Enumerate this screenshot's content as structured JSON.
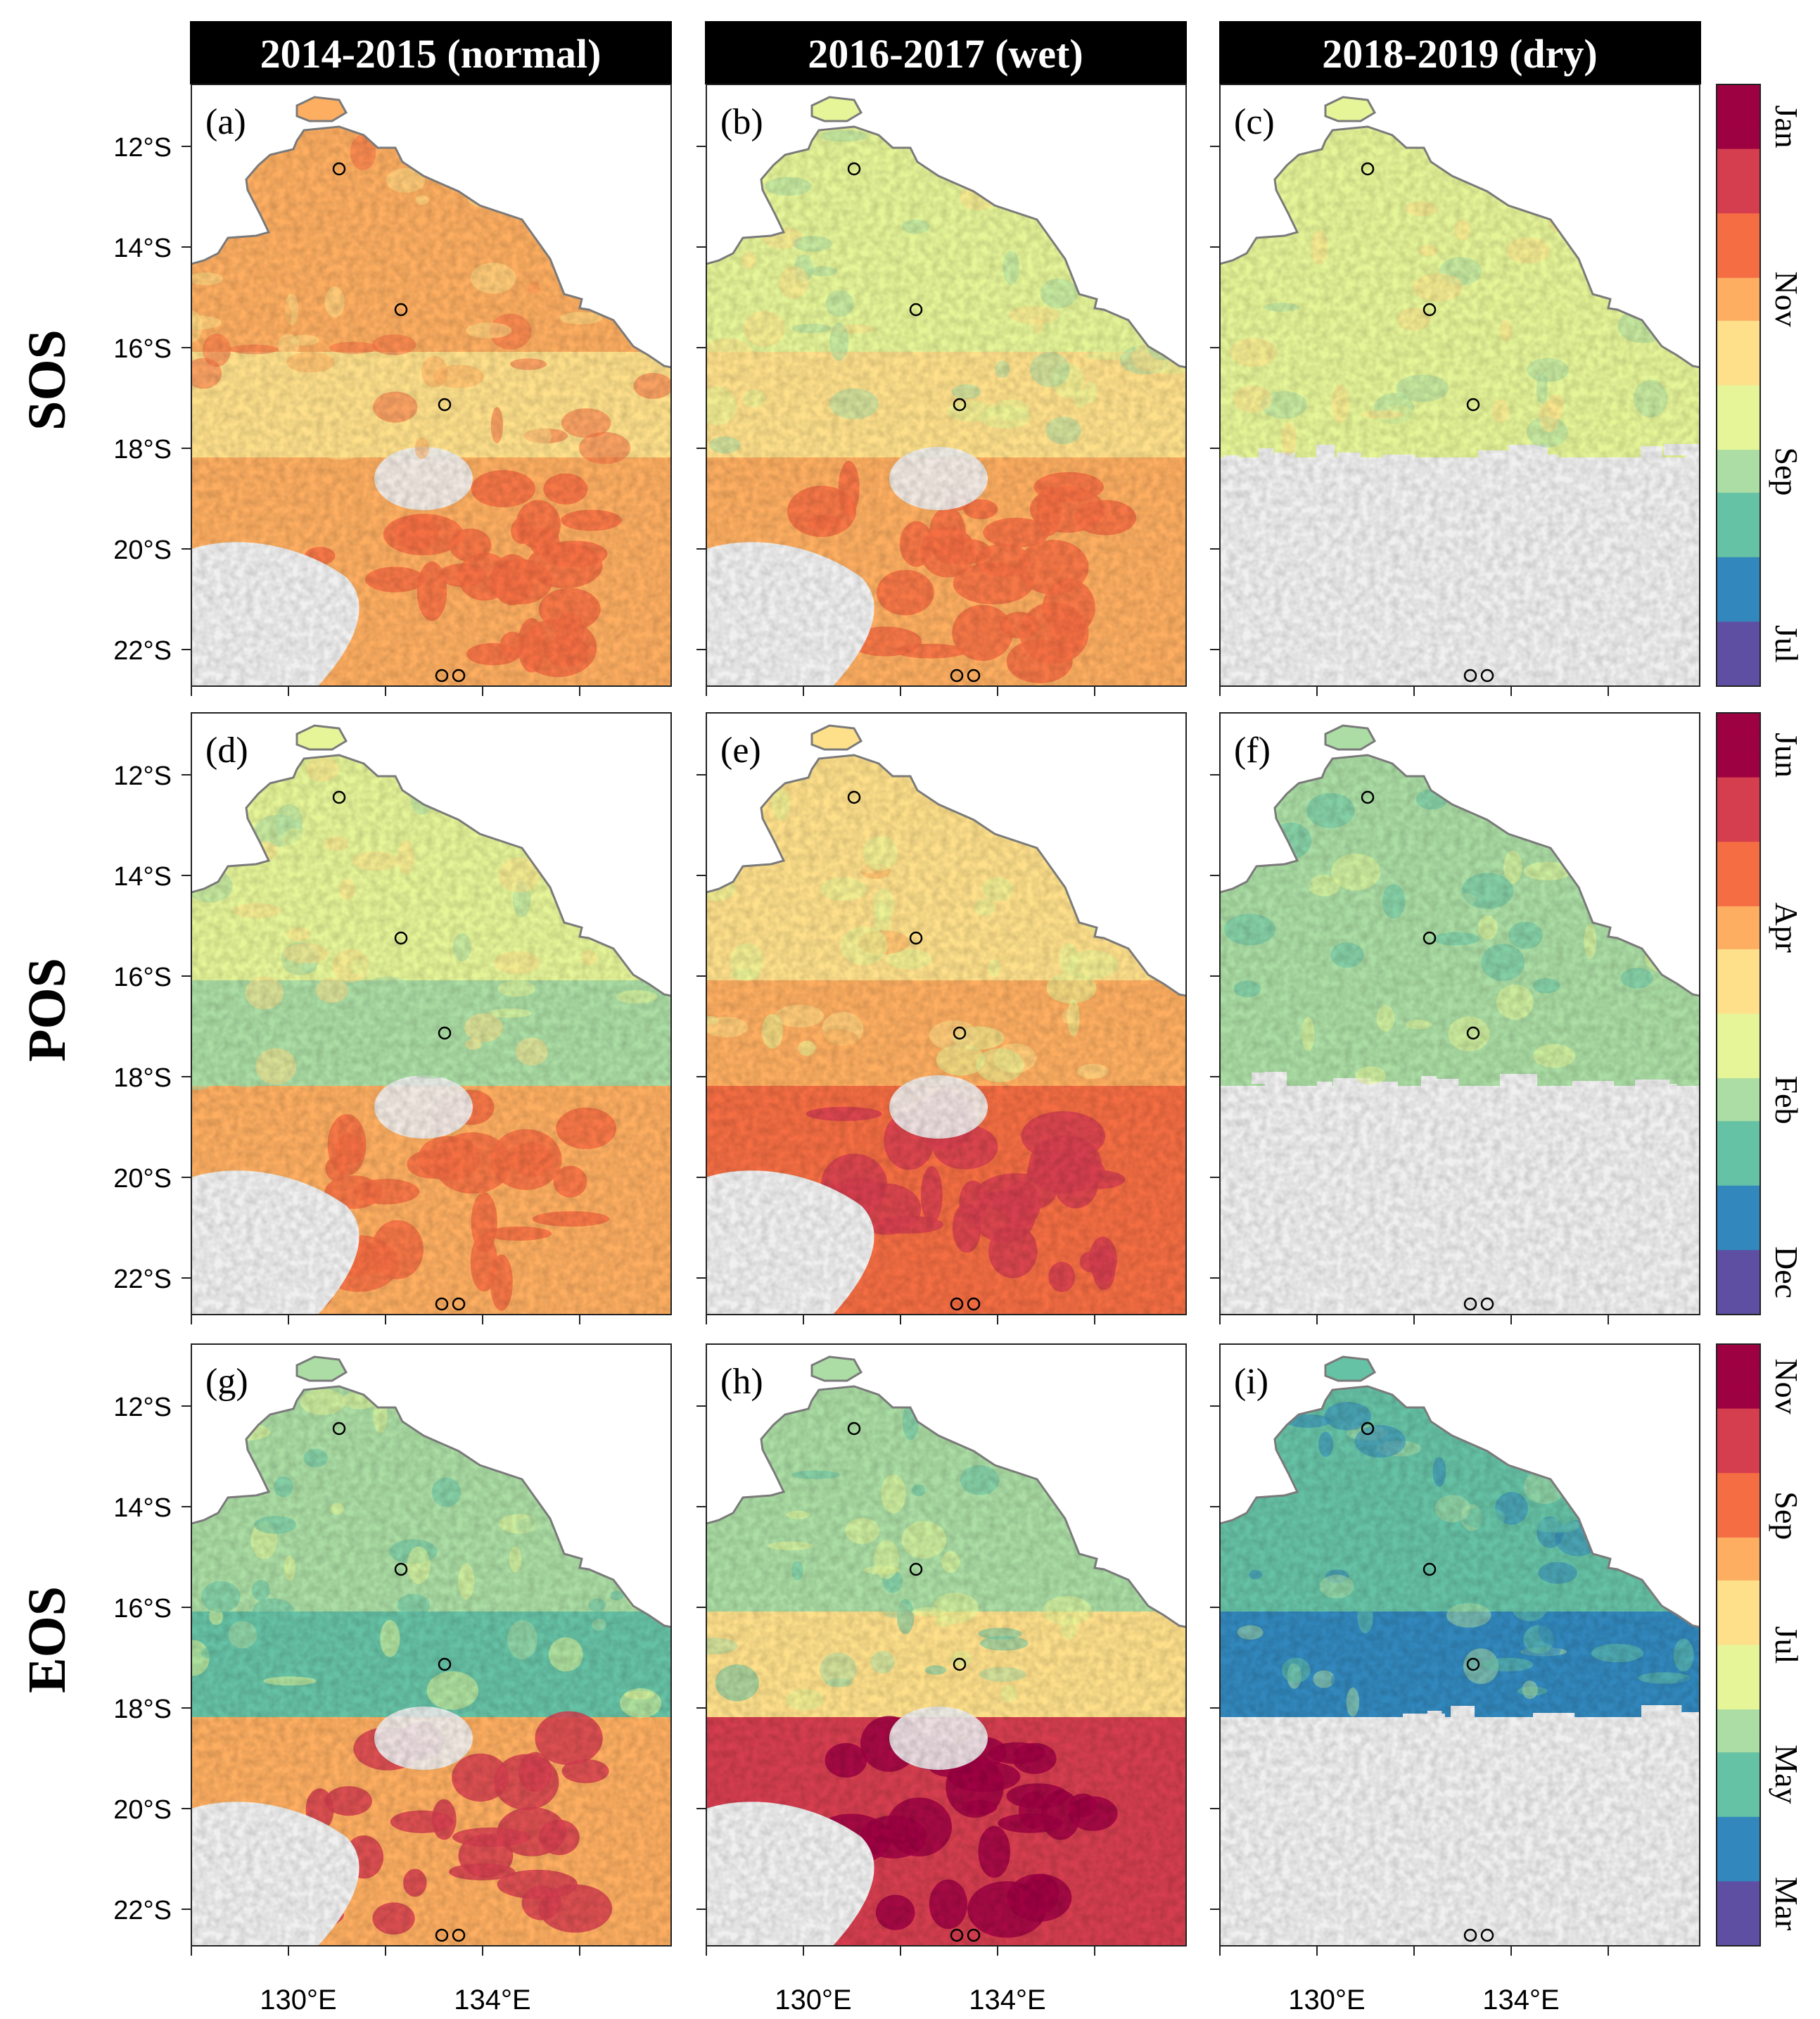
{
  "columns": [
    {
      "id": "c1",
      "title": "2014-2015 (normal)"
    },
    {
      "id": "c2",
      "title": "2016-2017 (wet)"
    },
    {
      "id": "c3",
      "title": "2018-2019 (dry)"
    }
  ],
  "rows": [
    {
      "id": "sos",
      "label": "SOS",
      "colorbar_labels": [
        "Jan",
        "Nov",
        "Sep",
        "Jul"
      ]
    },
    {
      "id": "pos",
      "label": "POS",
      "colorbar_labels": [
        "Jun",
        "Apr",
        "Feb",
        "Dec"
      ]
    },
    {
      "id": "eos",
      "label": "EOS",
      "colorbar_labels": [
        "Nov",
        "Sep",
        "Jul",
        "May",
        "Mar"
      ]
    }
  ],
  "panel_letters": [
    "(a)",
    "(b)",
    "(c)",
    "(d)",
    "(e)",
    "(f)",
    "(g)",
    "(h)",
    "(i)"
  ],
  "lat_labels": [
    "12°S",
    "14°S",
    "16°S",
    "18°S",
    "20°S",
    "22°S"
  ],
  "lon_labels": [
    "130°E",
    "134°E"
  ],
  "colors": {
    "background": "#ffffff",
    "nodata": "#f0f0f0",
    "coast": "#7a7a7a",
    "title_bar": "#000000",
    "title_text": "#ffffff",
    "palette": [
      "#5e4fa2",
      "#3288bd",
      "#66c2a5",
      "#abdda4",
      "#e6f598",
      "#fee08b",
      "#fdae61",
      "#f46d43",
      "#d53e4f",
      "#9e0142"
    ]
  }
}
